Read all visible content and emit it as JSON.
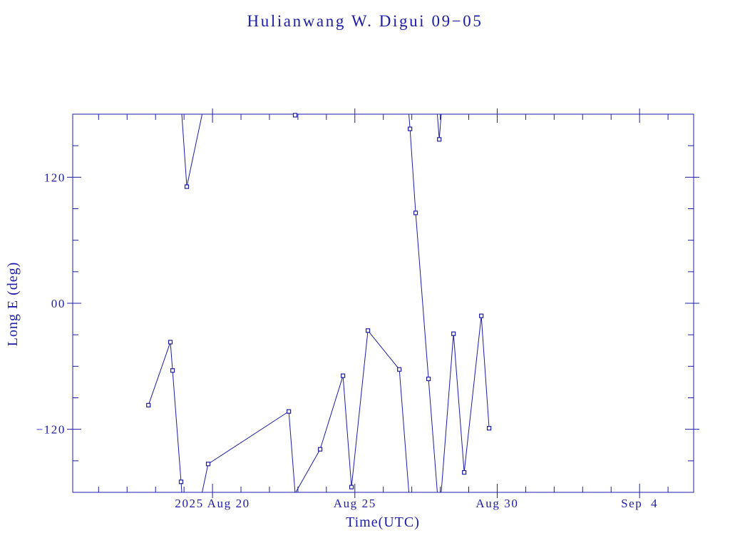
{
  "chart_data": {
    "type": "line",
    "title": "Hulianwang W. Digui 09−05",
    "xlabel": "Time(UTC)",
    "ylabel": "Long E (deg)",
    "x_axis_type": "date",
    "xlim": [
      "2025-08-15T02:10",
      "2025-09-05T21:35"
    ],
    "ylim": [
      -180,
      180
    ],
    "xticks": [
      {
        "value": "2025-08-20",
        "label": "2025 Aug 20"
      },
      {
        "value": "2025-08-25",
        "label": "Aug 25"
      },
      {
        "value": "2025-08-30",
        "label": "Aug 30"
      },
      {
        "value": "2025-09-04",
        "label": "Sep  4"
      }
    ],
    "yticks": [
      {
        "value": 120,
        "label": "120"
      },
      {
        "value": 0,
        "label": "00"
      },
      {
        "value": -120,
        "label": "−120"
      }
    ],
    "grid": false,
    "color": "#1c1ca8",
    "series": [
      {
        "marker": "square",
        "x": [
          "2025-08-17T18:00",
          "2025-08-18T12:30",
          "2025-08-18T14:20",
          "2025-08-18T21:30",
          "2025-08-19T02:20",
          "2025-08-19T20:20",
          "2025-08-22T16:20",
          "2025-08-22T21:40",
          "2025-08-23T18:45",
          "2025-08-24T14:00",
          "2025-08-24T21:10",
          "2025-08-25T11:00",
          "2025-08-26T13:30",
          "2025-08-26T22:30",
          "2025-08-27T03:15",
          "2025-08-27T14:05",
          "2025-08-27T23:10",
          "2025-08-28T11:10",
          "2025-08-28T20:10",
          "2025-08-29T10:35",
          "2025-08-29T17:10"
        ],
        "y": [
          -97,
          -37,
          -64,
          -170,
          111,
          -153,
          -103,
          179,
          -139,
          -69,
          -175,
          -26,
          -63,
          166,
          86,
          -72,
          156,
          -29,
          -161,
          -12,
          -119
        ]
      }
    ]
  }
}
